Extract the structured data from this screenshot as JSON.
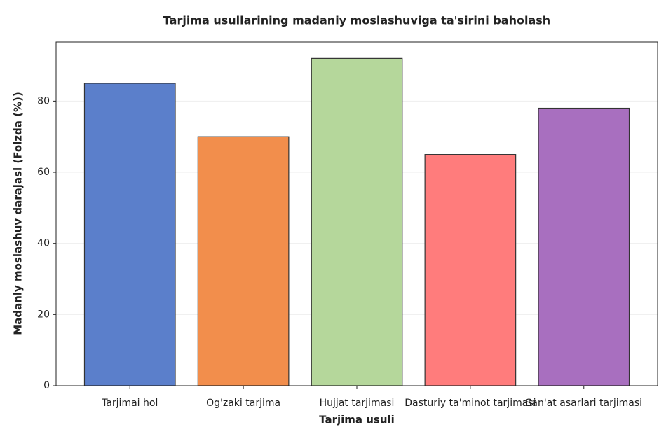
{
  "chart_data": {
    "type": "bar",
    "title": "Tarjima usullarining madaniy moslashuviga ta'sirini baholash",
    "x_label": "Tarjima usuli",
    "y_label": "Madaniy moslashuv darajasi (Foizda (%))",
    "categories": [
      "Tarjimai hol",
      "Og'zaki tarjima",
      "Hujjat tarjimasi",
      "Dasturiy ta'minot tarjimasi",
      "San'at asarlari tarjimasi"
    ],
    "values": [
      85,
      70,
      92,
      65,
      78
    ],
    "colors": [
      "#5b7fcb",
      "#f28e4c",
      "#b5d79b",
      "#ff7c7c",
      "#a86fbf"
    ],
    "ylim": [
      0,
      96.6
    ],
    "yticks": [
      0,
      20,
      40,
      60,
      80
    ],
    "grid": true
  }
}
